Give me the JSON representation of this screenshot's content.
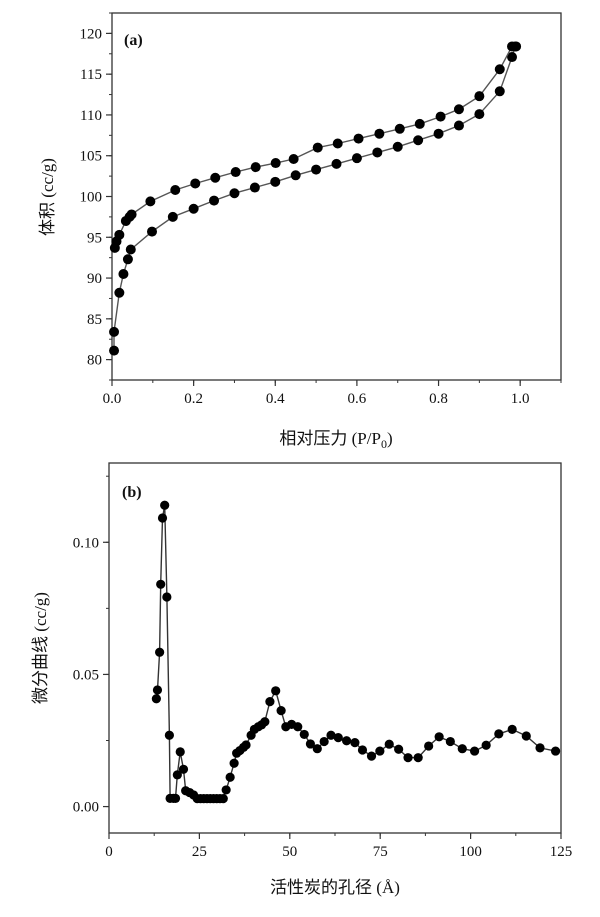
{
  "chart_data": [
    {
      "type": "line",
      "panel_label": "(a)",
      "xlabel": "相对压力 (P/P",
      "xlabel_sub": "0",
      "xlabel_end": ")",
      "ylabel": "体积 (cc/g)",
      "xlim": [
        0,
        1.1
      ],
      "ylim": [
        77.5,
        122.5
      ],
      "xticks": [
        0.0,
        0.2,
        0.4,
        0.6,
        0.8,
        1.0
      ],
      "xtick_labels": [
        "0.0",
        "0.2",
        "0.4",
        "0.6",
        "0.8",
        "1.0"
      ],
      "yticks": [
        80,
        85,
        90,
        95,
        100,
        105,
        110,
        115,
        120
      ],
      "ytick_labels": [
        "80",
        "85",
        "90",
        "95",
        "100",
        "105",
        "110",
        "115",
        "120"
      ],
      "grid": false,
      "marker": "filled-circle",
      "color": "#000000",
      "line_color": "#555555",
      "series": [
        {
          "x": [
            0.005,
            0.005,
            0.018,
            0.028,
            0.039,
            0.046,
            0.098,
            0.149,
            0.2,
            0.25,
            0.3,
            0.35,
            0.4,
            0.45,
            0.5,
            0.55,
            0.6,
            0.65,
            0.7,
            0.75,
            0.8,
            0.85,
            0.9,
            0.95,
            0.98,
            0.988
          ],
          "y": [
            81.1,
            83.4,
            88.2,
            90.5,
            92.3,
            93.5,
            95.7,
            97.5,
            98.5,
            99.5,
            100.4,
            101.1,
            101.8,
            102.6,
            103.3,
            104.0,
            104.7,
            105.4,
            106.1,
            106.9,
            107.7,
            108.7,
            110.1,
            112.9,
            117.1,
            118.4
          ]
        },
        {
          "x": [
            0.99,
            0.98,
            0.95,
            0.9,
            0.85,
            0.805,
            0.754,
            0.705,
            0.655,
            0.604,
            0.553,
            0.504,
            0.445,
            0.401,
            0.352,
            0.303,
            0.253,
            0.204,
            0.155,
            0.094,
            0.048,
            0.043,
            0.034,
            0.018,
            0.011,
            0.007
          ],
          "y": [
            118.4,
            118.4,
            115.6,
            112.3,
            110.7,
            109.8,
            108.9,
            108.3,
            107.7,
            107.1,
            106.5,
            106.0,
            104.6,
            104.1,
            103.6,
            103.0,
            102.3,
            101.6,
            100.8,
            99.4,
            97.8,
            97.5,
            97.0,
            95.3,
            94.5,
            93.7
          ]
        }
      ]
    },
    {
      "type": "line",
      "panel_label": "(b)",
      "xlabel": "活性炭的孔径 (Å)",
      "ylabel": "微分曲线 (cc/g)",
      "xlim": [
        0,
        125
      ],
      "ylim": [
        -0.01,
        0.13
      ],
      "xticks": [
        0,
        25,
        50,
        75,
        100,
        125
      ],
      "xtick_labels": [
        "0",
        "25",
        "50",
        "75",
        "100",
        "125"
      ],
      "yticks": [
        0.0,
        0.05,
        0.1
      ],
      "ytick_labels": [
        "0.00",
        "0.05",
        "0.10"
      ],
      "grid": false,
      "marker": "filled-circle",
      "color": "#000000",
      "line_color": "#333333",
      "series": [
        {
          "x": [
            13.1,
            13.4,
            14.0,
            14.3,
            14.8,
            15.4,
            16.0,
            16.7,
            16.9,
            17.8,
            18.4,
            18.9,
            19.7,
            20.6,
            21.2,
            22.3,
            23.4,
            24.4,
            25.3,
            26.2,
            27.1,
            28.0,
            28.9,
            29.8,
            30.7,
            31.6,
            32.4,
            33.5,
            34.6,
            35.3,
            36.2,
            37.2,
            37.9,
            39.3,
            40.2,
            41.3,
            42.2,
            43.1,
            44.5,
            46.1,
            47.6,
            48.9,
            50.5,
            52.2,
            54.0,
            55.7,
            57.6,
            59.5,
            61.4,
            63.4,
            65.7,
            68.0,
            70.1,
            72.6,
            74.9,
            77.5,
            80.1,
            82.7,
            85.5,
            88.4,
            91.3,
            94.4,
            97.7,
            101.1,
            104.3,
            107.8,
            111.5,
            115.4,
            119.2,
            123.5
          ],
          "y": [
            0.0408,
            0.0441,
            0.0584,
            0.0841,
            0.1092,
            0.114,
            0.0793,
            0.027,
            0.0031,
            0.0031,
            0.0031,
            0.012,
            0.0207,
            0.0141,
            0.006,
            0.0053,
            0.0044,
            0.003,
            0.003,
            0.003,
            0.003,
            0.003,
            0.003,
            0.003,
            0.003,
            0.003,
            0.0063,
            0.0111,
            0.0164,
            0.0202,
            0.0212,
            0.0224,
            0.0233,
            0.027,
            0.0292,
            0.0302,
            0.0309,
            0.0321,
            0.0397,
            0.0438,
            0.0363,
            0.0302,
            0.0311,
            0.0302,
            0.0273,
            0.0237,
            0.0219,
            0.0246,
            0.027,
            0.0261,
            0.0249,
            0.0242,
            0.0214,
            0.0191,
            0.021,
            0.0236,
            0.0217,
            0.0185,
            0.0185,
            0.0229,
            0.0264,
            0.0246,
            0.0219,
            0.021,
            0.0232,
            0.0275,
            0.0292,
            0.0267,
            0.0222,
            0.021
          ]
        }
      ]
    }
  ]
}
